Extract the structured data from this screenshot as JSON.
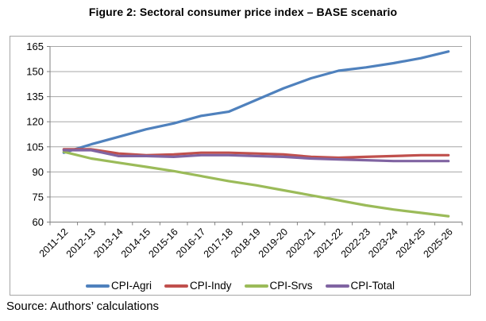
{
  "title": "Figure 2: Sectoral consumer price index – BASE scenario",
  "source": "Source: Authors’ calculations",
  "chart_data": {
    "type": "line",
    "title": "Figure 2: Sectoral consumer price index – BASE scenario",
    "xlabel": "",
    "ylabel": "",
    "ylim": [
      60,
      165
    ],
    "ytick_step": 15,
    "grid": "horizontal",
    "legend_position": "bottom",
    "categories": [
      "2011-12",
      "2012-13",
      "2013-14",
      "2014-15",
      "2015-16",
      "2016-17",
      "2017-18",
      "2018-19",
      "2019-20",
      "2020-21",
      "2021-22",
      "2022-23",
      "2023-24",
      "2024-25",
      "2025-26"
    ],
    "series": [
      {
        "name": "CPI-Agri",
        "color": "#4F81BD",
        "values": [
          101.5,
          106.5,
          111,
          115.5,
          119,
          123.5,
          126,
          133,
          140,
          146,
          150.5,
          152.5,
          155,
          158,
          162
        ]
      },
      {
        "name": "CPI-Indy",
        "color": "#C0504D",
        "values": [
          103.5,
          103.5,
          101,
          100,
          100.5,
          101.5,
          101.5,
          101,
          100.5,
          99,
          98.5,
          99,
          99.5,
          100,
          100
        ]
      },
      {
        "name": "CPI-Srvs",
        "color": "#9BBB59",
        "values": [
          102,
          98,
          95.5,
          93,
          90.5,
          87.5,
          84.5,
          82,
          79,
          76,
          73,
          70,
          67.5,
          65.5,
          63.5
        ]
      },
      {
        "name": "CPI-Total",
        "color": "#8064A2",
        "values": [
          103,
          103,
          99.5,
          99.5,
          99,
          100,
          100,
          99.5,
          99,
          98,
          97.5,
          97,
          96.5,
          96.5,
          96.5
        ]
      }
    ],
    "axis_color": "#808080",
    "gridline_color": "#a6a6a6"
  }
}
